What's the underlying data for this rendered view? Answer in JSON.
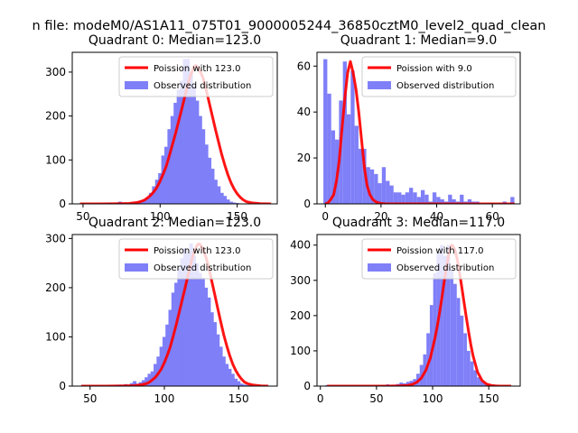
{
  "figure": {
    "suptitle": "n file: modeM0/AS1A11_075T01_9000005244_36850cztM0_level2_quad_clean"
  },
  "colors": {
    "hist": "#7f7ff8",
    "poisson": "#ff0000",
    "frame": "#000000"
  },
  "chart_data": [
    {
      "type": "bar",
      "title": "Quadrant 0: Median=123.0",
      "xlim": [
        43,
        176
      ],
      "ylim": [
        0,
        345
      ],
      "xticks": [
        50,
        100,
        150
      ],
      "yticks": [
        0,
        100,
        200,
        300
      ],
      "bin_width": 2.5,
      "legend": {
        "position": "upper-right",
        "entries": [
          "Poission with 123.0",
          "Observed distribution"
        ]
      },
      "histogram": {
        "name": "Observed distribution",
        "x": [
          46,
          48,
          50,
          52,
          54,
          56,
          58,
          60,
          62,
          64,
          66,
          68,
          70,
          72,
          74,
          76,
          78,
          80,
          82,
          84,
          86,
          88,
          90,
          92,
          94,
          96,
          98,
          100,
          102,
          104,
          106,
          108,
          110,
          112,
          114,
          116,
          118,
          120,
          122,
          124,
          126,
          128,
          130,
          132,
          134,
          136,
          138,
          140,
          142,
          144,
          146,
          148,
          150,
          152,
          154,
          156,
          158,
          160,
          162,
          164,
          166,
          168,
          170,
          172
        ],
        "values": [
          0,
          0,
          0,
          0,
          0,
          0,
          0,
          0,
          1,
          1,
          2,
          3,
          1,
          3,
          5,
          2,
          1,
          2,
          3,
          4,
          5,
          8,
          10,
          15,
          25,
          40,
          55,
          70,
          110,
          130,
          170,
          200,
          230,
          260,
          280,
          330,
          330,
          300,
          270,
          235,
          200,
          170,
          135,
          105,
          80,
          55,
          40,
          25,
          18,
          10,
          5,
          3,
          2,
          1,
          1,
          0,
          0,
          0,
          0,
          0,
          0,
          0,
          0,
          0
        ]
      },
      "poisson": {
        "name": "Poission with 123.0",
        "x": [
          48,
          60,
          70,
          80,
          85,
          88,
          90,
          92,
          94,
          96,
          98,
          100,
          102,
          104,
          106,
          108,
          110,
          112,
          114,
          116,
          118,
          120,
          122,
          123,
          124,
          126,
          128,
          130,
          132,
          134,
          136,
          138,
          140,
          142,
          144,
          146,
          148,
          150,
          152,
          154,
          156,
          160,
          165,
          172
        ],
        "values": [
          0,
          0,
          0.3,
          1,
          3,
          6,
          9,
          14,
          20,
          28,
          38,
          52,
          68,
          86,
          110,
          135,
          160,
          188,
          215,
          244,
          272,
          295,
          312,
          315,
          313,
          302,
          285,
          258,
          228,
          198,
          168,
          140,
          112,
          88,
          66,
          48,
          34,
          23,
          15,
          9,
          5,
          2,
          0.5,
          0
        ]
      }
    },
    {
      "type": "bar",
      "title": "Quadrant 1: Median=9.0",
      "xlim": [
        -3,
        70
      ],
      "ylim": [
        0,
        66
      ],
      "xticks": [
        0,
        20,
        40,
        60
      ],
      "yticks": [
        0,
        20,
        40,
        60
      ],
      "bin_width": 1.4,
      "legend": {
        "position": "upper-right",
        "entries": [
          "Poission with 9.0",
          "Observed distribution"
        ]
      },
      "histogram": {
        "name": "Observed distribution",
        "x": [
          0,
          1.4,
          2.8,
          4.2,
          5.6,
          7,
          8.4,
          9.8,
          11.2,
          12.6,
          14,
          15.4,
          16.8,
          18.2,
          19.6,
          21,
          22.4,
          23.8,
          25.2,
          26.6,
          28,
          29.4,
          30.8,
          32.2,
          33.6,
          35,
          36.4,
          37.8,
          39.2,
          40.6,
          42,
          43.4,
          44.8,
          46.2,
          47.6,
          49,
          50.4,
          51.8,
          53.2,
          54.6,
          56,
          57.4,
          58.8,
          60.2,
          61.6,
          63,
          64.4,
          65.8,
          67.2
        ],
        "values": [
          63,
          48,
          32,
          28,
          45,
          62,
          39,
          58,
          34,
          24,
          24,
          16,
          15,
          13,
          9,
          16,
          10,
          8,
          5,
          5,
          4,
          5,
          7,
          5,
          3,
          6,
          4,
          1,
          5,
          3,
          2,
          1,
          4,
          2,
          1,
          4,
          1,
          2,
          1,
          1,
          0,
          0,
          0,
          0,
          0,
          0,
          1,
          0,
          3
        ]
      },
      "poisson": {
        "name": "Poission with 9.0",
        "x": [
          0,
          1,
          2,
          3,
          4,
          5,
          6,
          7,
          8,
          9,
          10,
          11,
          12,
          13,
          14,
          15,
          16,
          17,
          18,
          19,
          20,
          22,
          25,
          30,
          40,
          50,
          60,
          68
        ],
        "values": [
          0,
          0.5,
          2,
          4,
          10,
          19,
          33,
          46,
          57,
          62,
          57,
          50,
          40,
          28,
          16,
          8,
          4,
          2,
          1,
          0.5,
          0.2,
          0,
          0,
          0,
          0,
          0,
          0,
          0
        ]
      }
    },
    {
      "type": "bar",
      "title": "Quadrant 2: Median=123.0",
      "xlim": [
        38,
        176
      ],
      "ylim": [
        0,
        308
      ],
      "xticks": [
        50,
        100,
        150
      ],
      "yticks": [
        0,
        100,
        200,
        300
      ],
      "bin_width": 2.5,
      "legend": {
        "position": "upper-right",
        "entries": [
          "Poission with 123.0",
          "Observed distribution"
        ]
      },
      "histogram": {
        "name": "Observed distribution",
        "x": [
          44,
          46,
          48,
          50,
          52,
          54,
          56,
          58,
          60,
          62,
          64,
          66,
          68,
          70,
          72,
          74,
          76,
          78,
          80,
          82,
          84,
          86,
          88,
          90,
          92,
          94,
          96,
          98,
          100,
          102,
          104,
          106,
          108,
          110,
          112,
          114,
          116,
          118,
          120,
          122,
          124,
          126,
          128,
          130,
          132,
          134,
          136,
          138,
          140,
          142,
          144,
          146,
          148,
          150,
          152,
          154,
          156,
          158,
          160,
          162,
          164,
          166,
          168,
          170
        ],
        "values": [
          0,
          0,
          0,
          0,
          0,
          0,
          0,
          0,
          0,
          0,
          1,
          0,
          2,
          3,
          1,
          4,
          2,
          6,
          10,
          5,
          8,
          12,
          18,
          25,
          30,
          45,
          60,
          80,
          100,
          125,
          155,
          190,
          210,
          240,
          260,
          280,
          270,
          290,
          265,
          250,
          230,
          220,
          200,
          180,
          150,
          130,
          105,
          80,
          60,
          45,
          35,
          25,
          15,
          10,
          5,
          3,
          2,
          1,
          0,
          0,
          0,
          0,
          0,
          0
        ]
      },
      "poisson": {
        "name": "Poission with 123.0",
        "x": [
          44,
          60,
          70,
          80,
          85,
          88,
          90,
          92,
          94,
          96,
          98,
          100,
          102,
          104,
          106,
          108,
          110,
          112,
          114,
          116,
          118,
          120,
          122,
          123,
          124,
          126,
          128,
          130,
          132,
          134,
          136,
          138,
          140,
          142,
          144,
          146,
          148,
          150,
          152,
          154,
          156,
          160,
          165,
          170
        ],
        "values": [
          0,
          0,
          0.3,
          1,
          3,
          5,
          8,
          13,
          18,
          26,
          35,
          48,
          63,
          80,
          102,
          125,
          150,
          175,
          200,
          226,
          252,
          272,
          286,
          289,
          288,
          278,
          262,
          240,
          212,
          185,
          157,
          130,
          104,
          82,
          62,
          45,
          32,
          22,
          14,
          8,
          5,
          2,
          0.5,
          0
        ]
      }
    },
    {
      "type": "bar",
      "title": "Quadrant 3: Median=117.0",
      "xlim": [
        -3,
        178
      ],
      "ylim": [
        0,
        430
      ],
      "xticks": [
        0,
        50,
        100,
        150
      ],
      "yticks": [
        0,
        100,
        200,
        300,
        400
      ],
      "bin_width": 3,
      "legend": {
        "position": "upper-right",
        "entries": [
          "Poission with 117.0",
          "Observed distribution"
        ]
      },
      "histogram": {
        "name": "Observed distribution",
        "x": [
          6,
          9,
          12,
          15,
          18,
          21,
          24,
          27,
          30,
          33,
          36,
          39,
          42,
          45,
          48,
          51,
          54,
          57,
          60,
          63,
          66,
          69,
          72,
          75,
          78,
          81,
          84,
          87,
          90,
          93,
          96,
          99,
          102,
          105,
          108,
          111,
          114,
          117,
          120,
          123,
          126,
          129,
          132,
          135,
          138,
          141,
          144,
          147,
          150,
          153,
          156,
          159,
          162,
          165,
          168
        ],
        "values": [
          3,
          0,
          0,
          1,
          0,
          0,
          0,
          2,
          0,
          0,
          1,
          0,
          2,
          1,
          0,
          3,
          1,
          2,
          5,
          3,
          4,
          6,
          10,
          8,
          12,
          15,
          20,
          35,
          60,
          90,
          150,
          230,
          320,
          380,
          400,
          370,
          400,
          330,
          290,
          250,
          200,
          150,
          100,
          70,
          45,
          25,
          15,
          8,
          5,
          2,
          1,
          0,
          0,
          0,
          0
        ]
      },
      "poisson": {
        "name": "Poission with 117.0",
        "x": [
          6,
          60,
          70,
          78,
          82,
          86,
          90,
          94,
          98,
          102,
          104,
          106,
          108,
          110,
          112,
          114,
          116,
          117,
          118,
          120,
          122,
          124,
          126,
          128,
          130,
          132,
          134,
          136,
          140,
          144,
          148,
          152,
          156,
          160,
          170
        ],
        "values": [
          0,
          0,
          0.5,
          2,
          5,
          11,
          23,
          45,
          80,
          135,
          168,
          205,
          245,
          290,
          330,
          368,
          395,
          400,
          398,
          385,
          358,
          322,
          280,
          237,
          195,
          155,
          118,
          86,
          40,
          16,
          6,
          2,
          0.5,
          0,
          0
        ]
      }
    }
  ]
}
